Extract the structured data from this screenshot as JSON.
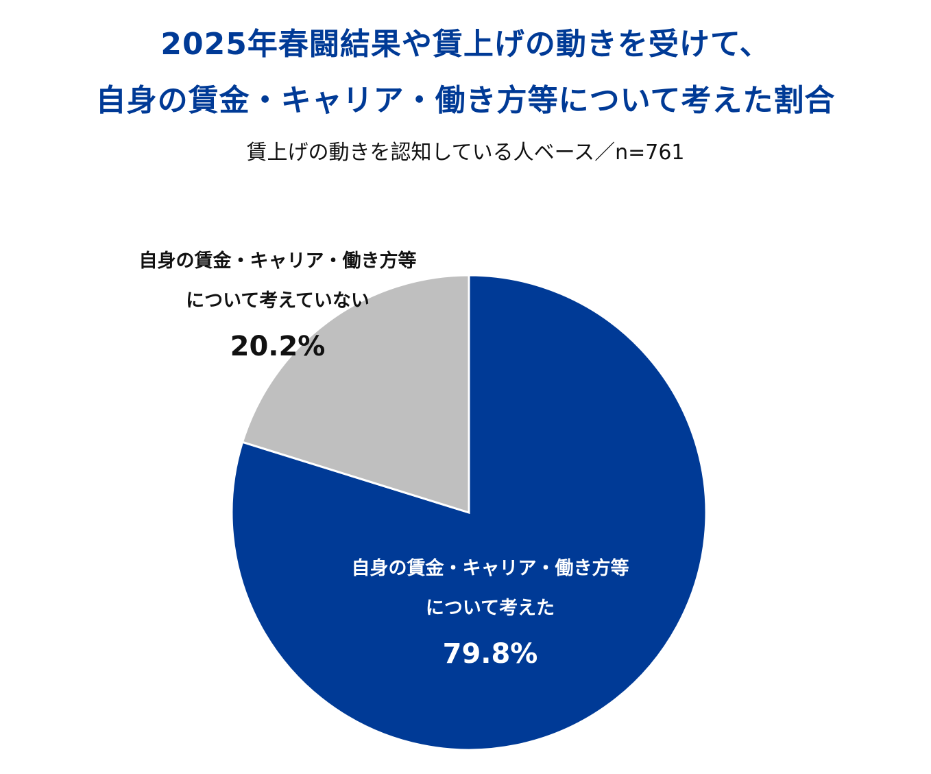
{
  "title_line1": "2025年春闘結果や賃上げの動きを受けて、",
  "title_line2": "自身の賃金・キャリア・働き方等について考えた割合",
  "subtitle": "賃上げの動きを認知している人ベース／n=761",
  "chart_data": {
    "type": "pie",
    "title": "2025年春闘結果や賃上げの動きを受けて、自身の賃金・キャリア・働き方等について考えた割合",
    "subtitle": "賃上げの動きを認知している人ベース／n=761",
    "slices": [
      {
        "label_line1": "自身の賃金・キャリア・働き方等",
        "label_line2": "について考えた",
        "value": 79.8,
        "value_label": "79.8%",
        "color": "#003a96"
      },
      {
        "label_line1": "自身の賃金・キャリア・働き方等",
        "label_line2": "について考えていない",
        "value": 20.2,
        "value_label": "20.2%",
        "color": "#bfbfbf"
      }
    ]
  }
}
